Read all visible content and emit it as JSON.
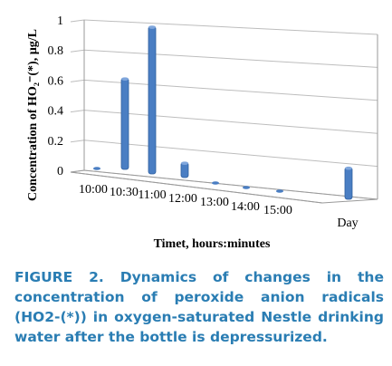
{
  "chart_data": {
    "type": "bar",
    "categories": [
      "10:00",
      "10:30",
      "11:00",
      "12:00",
      "13:00",
      "14:00",
      "15:00",
      "Day"
    ],
    "values": [
      0,
      0.6,
      0.97,
      0.1,
      0,
      0,
      0,
      0.21
    ],
    "xlabel": "Timet, hours:minutes",
    "ylabel": "Concentration of HO₂⁻(*), µg/L",
    "ylim": [
      0,
      1
    ],
    "yticks": [
      "0",
      "0.2",
      "0.4",
      "0.6",
      "0.8",
      "1"
    ],
    "grid": true,
    "bar_color": "#4a7ec3"
  },
  "caption": {
    "label": "FIGURE 2.",
    "text": "Dynamics of changes in the concentration of peroxide anion radicals (HO2-(*)) in oxygen-saturated Nestle drinking water after the bottle is depressurized."
  }
}
